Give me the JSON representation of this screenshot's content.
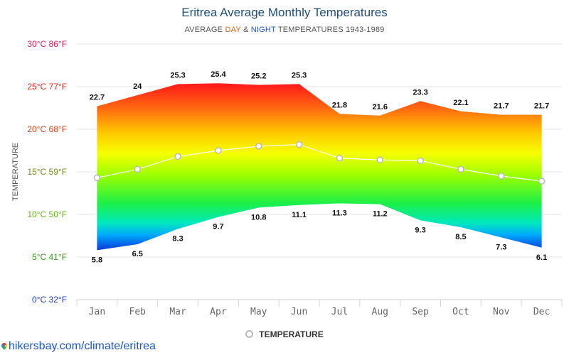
{
  "header": {
    "title": "Eritrea Average Monthly Temperatures",
    "subtitle_pre": "AVERAGE ",
    "subtitle_day": "DAY",
    "subtitle_amp": " & ",
    "subtitle_night": "NIGHT",
    "subtitle_post": " TEMPERATURES 1943-1989"
  },
  "legend": {
    "label": "TEMPERATURE"
  },
  "footer": {
    "link": "hikersbay.com/climate/eritrea"
  },
  "colors": {
    "day_accent": "#e8650a",
    "night_accent": "#1a56c8",
    "title": "#1f4e79",
    "grid": "#e6e6e6",
    "mean_line": "#ffffff",
    "mean_marker_border": "#b9b9b9"
  },
  "chart_data": {
    "type": "area",
    "title": "Eritrea Average Monthly Temperatures",
    "ylabel": "TEMPERATURE",
    "ylim": [
      0,
      30
    ],
    "grid": true,
    "legend_position": "bottom",
    "categories": [
      "Jan",
      "Feb",
      "Mar",
      "Apr",
      "May",
      "Jun",
      "Jul",
      "Aug",
      "Sep",
      "Oct",
      "Nov",
      "Dec"
    ],
    "y_ticks": [
      {
        "value": 0,
        "label": "0°C 32°F",
        "color": "#1f3fbf"
      },
      {
        "value": 5,
        "label": "5°C 41°F",
        "color": "#3a9a1a"
      },
      {
        "value": 10,
        "label": "10°C 50°F",
        "color": "#66b31a"
      },
      {
        "value": 15,
        "label": "15°C 59°F",
        "color": "#6f8f1a"
      },
      {
        "value": 20,
        "label": "20°C 68°F",
        "color": "#e0441a"
      },
      {
        "value": 25,
        "label": "25°C 77°F",
        "color": "#e02a1a"
      },
      {
        "value": 30,
        "label": "30°C 86°F",
        "color": "#d81b60"
      }
    ],
    "series": [
      {
        "name": "DAY",
        "values": [
          22.7,
          24,
          25.3,
          25.4,
          25.2,
          25.3,
          21.8,
          21.6,
          23.3,
          22.1,
          21.7,
          21.7
        ]
      },
      {
        "name": "NIGHT",
        "values": [
          5.8,
          6.5,
          8.3,
          9.7,
          10.8,
          11.1,
          11.3,
          11.2,
          9.3,
          8.5,
          7.3,
          6.1
        ]
      },
      {
        "name": "TEMPERATURE",
        "values": [
          14.3,
          15.3,
          16.8,
          17.5,
          18.0,
          18.2,
          16.6,
          16.4,
          16.3,
          15.3,
          14.5,
          13.9
        ]
      }
    ]
  }
}
